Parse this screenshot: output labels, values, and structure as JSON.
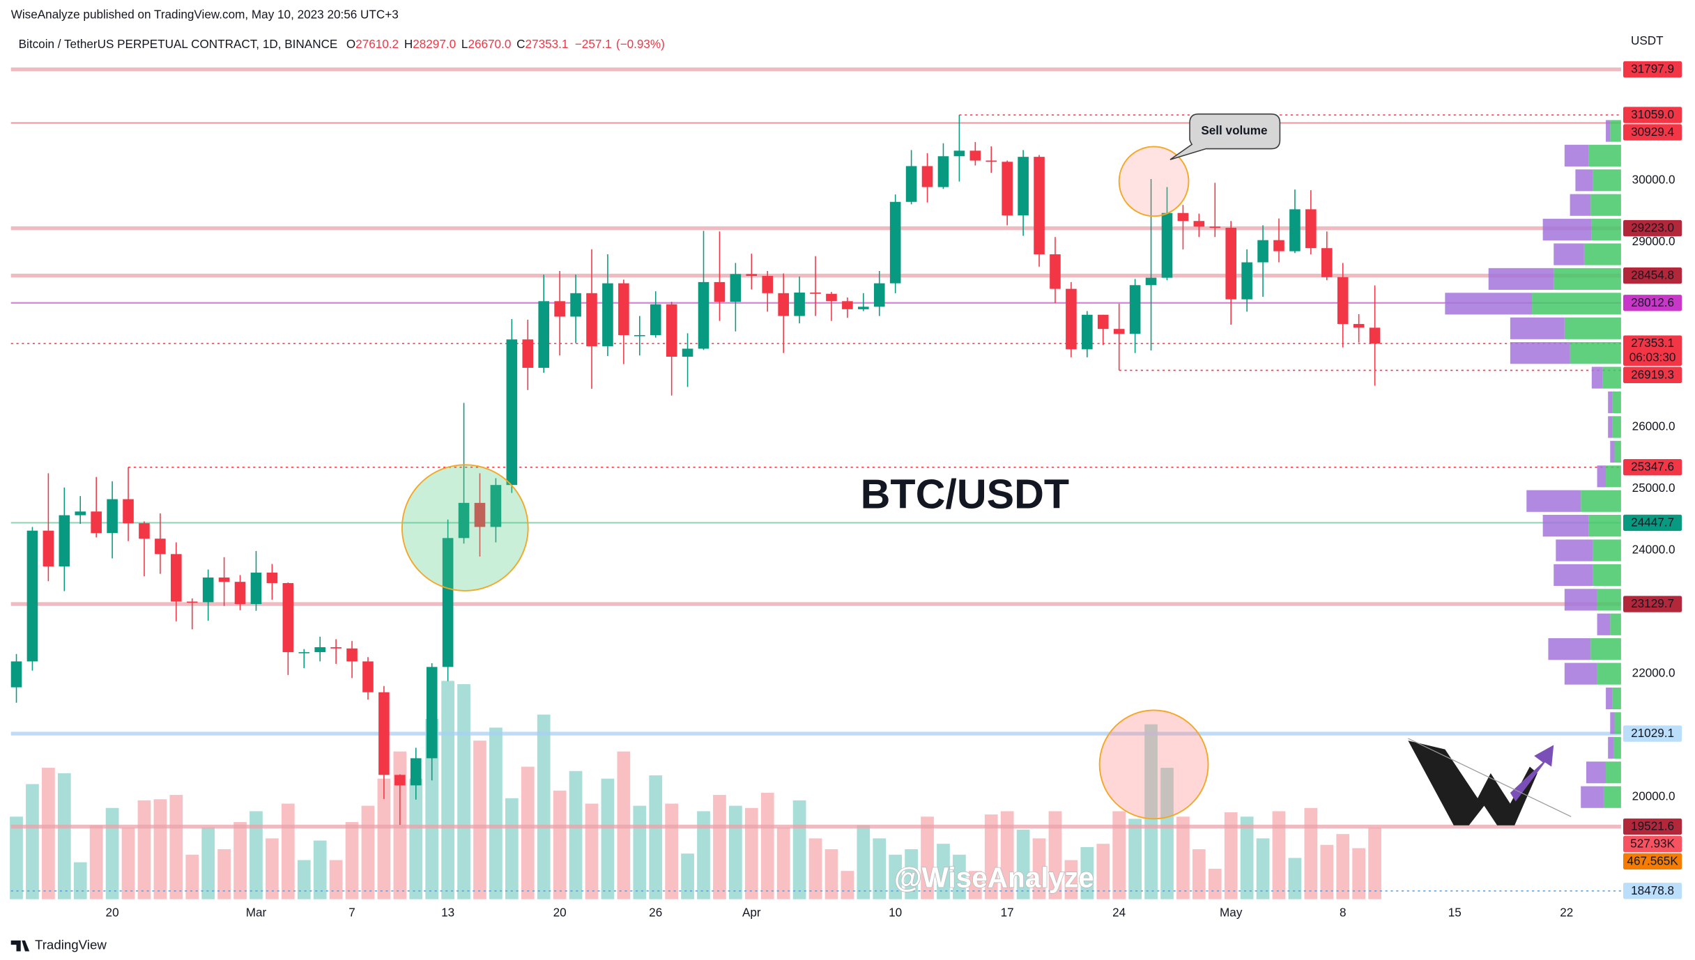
{
  "chart_data": {
    "type": "candlestick",
    "publisher": "WiseAnalyze published on TradingView.com, May 10, 2023 20:56 UTC+3",
    "symbol": "Bitcoin / TetherUS PERPETUAL CONTRACT, 1D, BINANCE",
    "legend": [
      {
        "key": "O",
        "value": 27610.2,
        "label": "27610.2"
      },
      {
        "key": "H",
        "value": 28297.0,
        "label": "28297.0"
      },
      {
        "key": "L",
        "value": 26670.0,
        "label": "26670.0"
      },
      {
        "key": "C",
        "value": 27353.1,
        "label": "27353.1"
      }
    ],
    "change": {
      "value": -257.1,
      "label": "−257.1"
    },
    "change_pct": {
      "value": -0.93,
      "label": "(−0.93%)"
    },
    "axis_unit": "USDT",
    "title": "BTC/USDT",
    "callout": "Sell volume",
    "watermark": "@WiseAnalyze",
    "footer": "TradingView",
    "up_color": "#089981",
    "down_color": "#f23645",
    "volume_colors": {
      "up": "#a9ddd7",
      "down": "#f8c0c3"
    },
    "grid": false,
    "x": [
      "2023-02-14",
      "2023-02-15",
      "2023-02-16",
      "2023-02-17",
      "2023-02-18",
      "2023-02-19",
      "2023-02-20",
      "2023-02-21",
      "2023-02-22",
      "2023-02-23",
      "2023-02-24",
      "2023-02-25",
      "2023-02-26",
      "2023-02-27",
      "2023-02-28",
      "2023-03-01",
      "2023-03-02",
      "2023-03-03",
      "2023-03-04",
      "2023-03-05",
      "2023-03-06",
      "2023-03-07",
      "2023-03-08",
      "2023-03-09",
      "2023-03-10",
      "2023-03-11",
      "2023-03-12",
      "2023-03-13",
      "2023-03-14",
      "2023-03-15",
      "2023-03-16",
      "2023-03-17",
      "2023-03-18",
      "2023-03-19",
      "2023-03-20",
      "2023-03-21",
      "2023-03-22",
      "2023-03-23",
      "2023-03-24",
      "2023-03-25",
      "2023-03-26",
      "2023-03-27",
      "2023-03-28",
      "2023-03-29",
      "2023-03-30",
      "2023-03-31",
      "2023-04-01",
      "2023-04-02",
      "2023-04-03",
      "2023-04-04",
      "2023-04-05",
      "2023-04-06",
      "2023-04-07",
      "2023-04-08",
      "2023-04-09",
      "2023-04-10",
      "2023-04-11",
      "2023-04-12",
      "2023-04-13",
      "2023-04-14",
      "2023-04-15",
      "2023-04-16",
      "2023-04-17",
      "2023-04-18",
      "2023-04-19",
      "2023-04-20",
      "2023-04-21",
      "2023-04-22",
      "2023-04-23",
      "2023-04-24",
      "2023-04-25",
      "2023-04-26",
      "2023-04-27",
      "2023-04-28",
      "2023-04-29",
      "2023-04-30",
      "2023-05-01",
      "2023-05-02",
      "2023-05-03",
      "2023-05-04",
      "2023-05-05",
      "2023-05-06",
      "2023-05-07",
      "2023-05-08",
      "2023-05-09",
      "2023-05-10"
    ],
    "open": [
      21780,
      22200,
      24320,
      23740,
      24570,
      24630,
      24280,
      24830,
      24440,
      24190,
      23940,
      23170,
      23160,
      23560,
      23490,
      23130,
      23640,
      23470,
      22350,
      22350,
      22430,
      22410,
      22200,
      21700,
      20360,
      20190,
      20630,
      22110,
      24200,
      24770,
      24380,
      25060,
      27420,
      26960,
      28040,
      27790,
      28170,
      27310,
      28330,
      27490,
      27490,
      27990,
      27140,
      27270,
      28350,
      28030,
      28480,
      28450,
      28170,
      27800,
      28180,
      28160,
      28040,
      27910,
      27950,
      28330,
      29650,
      30230,
      29890,
      30390,
      30480,
      30320,
      30300,
      29430,
      30380,
      28800,
      28240,
      27260,
      27820,
      27590,
      27510,
      28300,
      28420,
      29470,
      29340,
      29250,
      29230,
      28070,
      28670,
      29030,
      28850,
      29530,
      28900,
      28430,
      27670,
      27610.2
    ],
    "high": [
      22320,
      24380,
      25250,
      25020,
      24880,
      25190,
      25120,
      25347.6,
      24470,
      24600,
      24130,
      23220,
      23690,
      23890,
      23600,
      23990,
      23780,
      23480,
      22400,
      22600,
      22560,
      22530,
      22270,
      21800,
      20370,
      20800,
      22170,
      24500,
      26390,
      25250,
      25170,
      27750,
      27740,
      28470,
      28530,
      28470,
      28880,
      28800,
      28390,
      27800,
      28200,
      28030,
      27520,
      29180,
      29170,
      28660,
      28810,
      28530,
      28490,
      28440,
      28770,
      28190,
      28100,
      28170,
      28530,
      29770,
      30490,
      30440,
      30600,
      31059.0,
      30620,
      30550,
      30320,
      30490,
      30410,
      29080,
      28350,
      27880,
      27820,
      28000,
      28400,
      30020,
      29890,
      29600,
      29460,
      29960,
      29340,
      28880,
      29270,
      29380,
      29850,
      29840,
      29170,
      28660,
      27830,
      28297.0
    ],
    "low": [
      21530,
      22050,
      23500,
      23340,
      24430,
      24210,
      23870,
      24150,
      23580,
      23620,
      22850,
      22720,
      22860,
      23100,
      23030,
      23020,
      23200,
      21980,
      22090,
      22200,
      22160,
      21930,
      21580,
      19970,
      19550,
      19960,
      20270,
      21880,
      24110,
      23900,
      24130,
      24930,
      26600,
      26880,
      27160,
      27360,
      26620,
      27150,
      27020,
      27160,
      27450,
      26510,
      26650,
      27250,
      27720,
      27550,
      28230,
      27870,
      27200,
      27680,
      27800,
      27720,
      27770,
      27880,
      27800,
      28170,
      29610,
      29640,
      29860,
      29980,
      30240,
      30120,
      29270,
      29100,
      28600,
      28010,
      27130,
      27130,
      27330,
      26919.3,
      27200,
      27240,
      28380,
      28880,
      29080,
      29080,
      27660,
      27870,
      28110,
      28670,
      28820,
      28800,
      28380,
      27290,
      27370,
      26670.0
    ],
    "close": [
      22200,
      24320,
      23740,
      24570,
      24630,
      24280,
      24830,
      24440,
      24190,
      23940,
      23170,
      23160,
      23560,
      23490,
      23130,
      23640,
      23470,
      22350,
      22350,
      22430,
      22410,
      22200,
      21700,
      20360,
      20190,
      20630,
      22110,
      24200,
      24770,
      24380,
      25060,
      27420,
      26960,
      28040,
      27790,
      28170,
      27310,
      28330,
      27490,
      27490,
      27990,
      27140,
      27270,
      28350,
      28030,
      28480,
      28450,
      28170,
      27800,
      28180,
      28160,
      28040,
      27910,
      27950,
      28330,
      29650,
      30230,
      29890,
      30390,
      30480,
      30320,
      30300,
      29430,
      30380,
      28800,
      28240,
      27260,
      27820,
      27590,
      27510,
      28300,
      28420,
      29470,
      29340,
      29250,
      29230,
      28070,
      28670,
      29030,
      28850,
      29530,
      28900,
      28430,
      27670,
      27610.2,
      27353.1
    ],
    "volume": [
      608000,
      848000,
      968000,
      928000,
      272000,
      544000,
      672000,
      528000,
      728000,
      736000,
      768000,
      328000,
      528000,
      368000,
      568000,
      648000,
      448000,
      704000,
      288000,
      432000,
      288000,
      568000,
      688000,
      888000,
      1088000,
      888000,
      1328000,
      1608000,
      1584000,
      1168000,
      1264000,
      744000,
      976000,
      1360000,
      800000,
      944000,
      704000,
      888000,
      1088000,
      688000,
      912000,
      704000,
      336000,
      648000,
      768000,
      688000,
      672000,
      784000,
      528000,
      728000,
      448000,
      368000,
      208000,
      544000,
      448000,
      328000,
      368000,
      608000,
      408000,
      328000,
      208000,
      624000,
      648000,
      512000,
      448000,
      648000,
      288000,
      384000,
      408000,
      648000,
      592000,
      1288000,
      968000,
      608000,
      368000,
      224000,
      640000,
      608000,
      448000,
      648000,
      304000,
      672000,
      400000,
      480000,
      376000,
      527930
    ],
    "volume_axis": "y2",
    "volume_labels": [
      {
        "value": 527930,
        "label": "527.93K",
        "color": "#f7525f",
        "text_color": "#ffffff"
      },
      {
        "value": 467565,
        "label": "467.565K",
        "color": "#f57c00",
        "text_color": "#131722"
      }
    ],
    "xlim": [
      "2023-02-13",
      "2023-05-25"
    ],
    "xticks": [
      {
        "value": "2023-02-20",
        "label": "20"
      },
      {
        "value": "2023-03-01",
        "label": "Mar"
      },
      {
        "value": "2023-03-07",
        "label": "7"
      },
      {
        "value": "2023-03-13",
        "label": "13"
      },
      {
        "value": "2023-03-20",
        "label": "20"
      },
      {
        "value": "2023-03-26",
        "label": "26"
      },
      {
        "value": "2023-04-01",
        "label": "Apr"
      },
      {
        "value": "2023-04-10",
        "label": "10"
      },
      {
        "value": "2023-04-17",
        "label": "17"
      },
      {
        "value": "2023-04-24",
        "label": "24"
      },
      {
        "value": "2023-05-01",
        "label": "May"
      },
      {
        "value": "2023-05-08",
        "label": "8"
      },
      {
        "value": "2023-05-15",
        "label": "15"
      },
      {
        "value": "2023-05-22",
        "label": "22"
      }
    ],
    "ylim": [
      18345,
      32430
    ],
    "yticks": [
      {
        "value": 20000,
        "label": "20000.0"
      },
      {
        "value": 22000,
        "label": "22000.0"
      },
      {
        "value": 24000,
        "label": "24000.0"
      },
      {
        "value": 25000,
        "label": "25000.0"
      },
      {
        "value": 26000,
        "label": "26000.0"
      },
      {
        "value": 29000,
        "label": "29000.0"
      },
      {
        "value": 30000,
        "label": "30000.0"
      }
    ],
    "y2lim": [
      0,
      6400000
    ],
    "levels": [
      {
        "value": 31797.9,
        "label": "31797.9",
        "color": "#f23645",
        "text_color": "#ffffff",
        "line_color": "#e9a3ab",
        "line": "thick"
      },
      {
        "value": 31059.0,
        "label": "31059.0",
        "color": "#f23645",
        "text_color": "#ffffff",
        "line_color": "#f23645",
        "line": "dotted"
      },
      {
        "value": 30929.4,
        "label": "30929.4",
        "color": "#f23645",
        "text_color": "#ffffff",
        "line_color": "#f28b94",
        "line": "solid"
      },
      {
        "value": 29223.0,
        "label": "29223.0",
        "color": "#b2283a",
        "text_color": "#ffffff",
        "line_color": "#e9a3ab",
        "line": "thick"
      },
      {
        "value": 28454.8,
        "label": "28454.8",
        "color": "#b2283a",
        "text_color": "#ffffff",
        "line_color": "#e9a3ab",
        "line": "thick"
      },
      {
        "value": 28012.6,
        "label": "28012.6",
        "color": "#c837c8",
        "text_color": "#ffffff",
        "line_color": "#d46bd4",
        "line": "solid"
      },
      {
        "value": 27353.1,
        "label": "27353.1",
        "countdown": "06:03:30",
        "color": "#f23645",
        "text_color": "#ffffff",
        "line_color": "#f23645",
        "line": "dotted"
      },
      {
        "value": 26919.3,
        "label": "26919.3",
        "color": "#f23645",
        "text_color": "#ffffff",
        "line_color": "#f23645",
        "line": "dotted"
      },
      {
        "value": 25347.6,
        "label": "25347.6",
        "color": "#f23645",
        "text_color": "#ffffff",
        "line_color": "#f23645",
        "line": "dotted"
      },
      {
        "value": 24447.7,
        "label": "24447.7",
        "color": "#089981",
        "text_color": "#ffffff",
        "line_color": "#7fd3b0",
        "line": "solid"
      },
      {
        "value": 23129.7,
        "label": "23129.7",
        "color": "#b2283a",
        "text_color": "#ffffff",
        "line_color": "#e9a3ab",
        "line": "thick"
      },
      {
        "value": 21029.1,
        "label": "21029.1",
        "color": "#bbdefb",
        "text_color": "#131722",
        "line_color": "#a8cff5",
        "line": "thick"
      },
      {
        "value": 19521.6,
        "label": "19521.6",
        "color": "#b2283a",
        "text_color": "#ffffff",
        "line_color": "#e9a3ab",
        "line": "thick"
      },
      {
        "value": 18478.8,
        "label": "18478.8",
        "color": "#bbdefb",
        "text_color": "#131722",
        "line_color": "#5b9bd5",
        "line": "dotted"
      }
    ],
    "volume_profile": {
      "up_color": "#44c767",
      "down_color": "#a374db",
      "prices": [
        30800,
        30400,
        30000,
        29600,
        29200,
        28800,
        28400,
        28000,
        27600,
        27200,
        26800,
        26400,
        26000,
        25600,
        25200,
        24800,
        24400,
        24000,
        23600,
        23200,
        22800,
        22400,
        22000,
        21600,
        21200,
        20800,
        20400,
        20000
      ],
      "up": [
        10,
        30,
        26,
        28,
        27,
        34,
        62,
        82,
        52,
        47,
        17,
        8,
        8,
        6,
        14,
        37,
        30,
        26,
        26,
        22,
        10,
        28,
        22,
        8,
        6,
        7,
        14,
        16
      ],
      "down": [
        4,
        22,
        16,
        19,
        45,
        28,
        60,
        80,
        50,
        55,
        10,
        4,
        4,
        4,
        8,
        50,
        42,
        34,
        36,
        30,
        12,
        39,
        30,
        6,
        4,
        5,
        18,
        21
      ]
    }
  }
}
